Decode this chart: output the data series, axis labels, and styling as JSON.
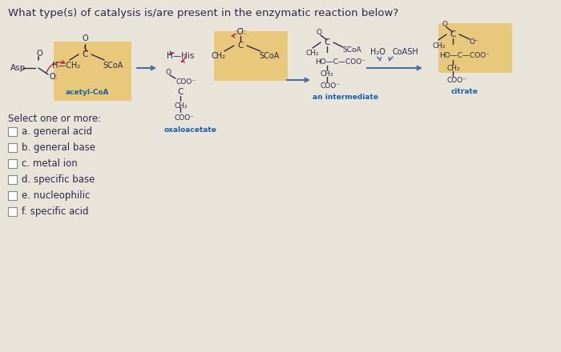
{
  "title": "What type(s) of catalysis is/are present in the enzymatic reaction below?",
  "bg_color": "#e8e4da",
  "highlight_color": "#e8c87a",
  "options": [
    "a. general acid",
    "b. general base",
    "c. metal ion",
    "d. specific base",
    "e. nucleophilic",
    "f. specific acid"
  ],
  "select_label": "Select one or more:",
  "arrow_color": "#4a6fa5",
  "text_color": "#2a2a4a",
  "blue_label_color": "#1a5fa8",
  "red_color": "#b03040"
}
